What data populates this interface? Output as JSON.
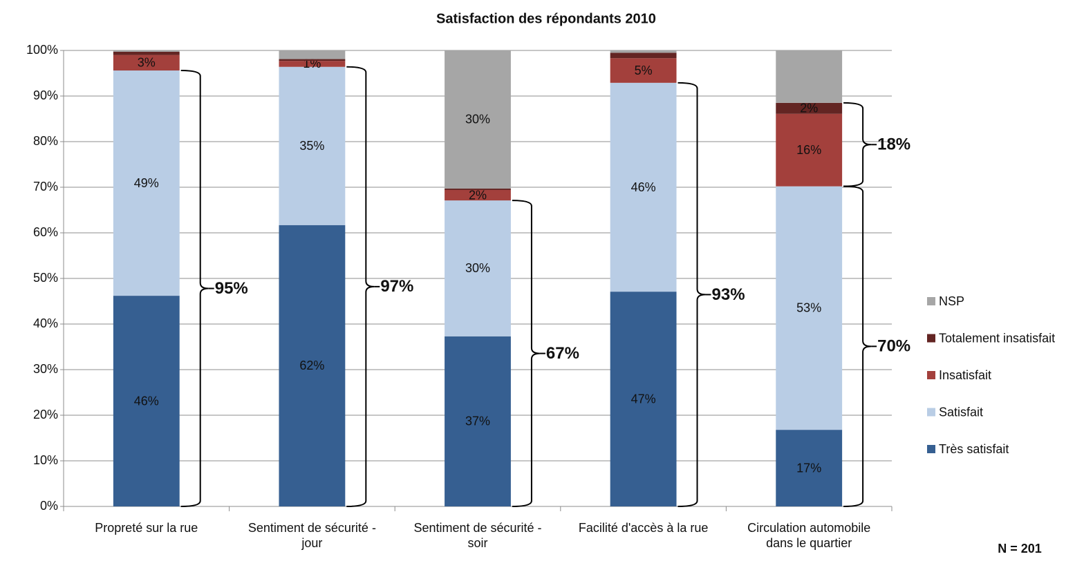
{
  "chart_data": {
    "type": "stacked_bar",
    "title": "Satisfaction des répondants 2010",
    "categories": [
      "Propreté sur la rue",
      "Sentiment de sécurité - jour",
      "Sentiment de sécurité - soir",
      "Facilité d'accès à la rue",
      "Circulation automobile dans le quartier"
    ],
    "series": [
      {
        "name": "Très satisfait",
        "color": "#365f91",
        "values": [
          46.2,
          61.7,
          37.3,
          47.1,
          16.8
        ],
        "value_labels": [
          "46%",
          "62%",
          "37%",
          "47%",
          "17%"
        ]
      },
      {
        "name": "Satisfait",
        "color": "#b9cde5",
        "values": [
          49.4,
          34.7,
          29.8,
          45.8,
          53.4
        ],
        "value_labels": [
          "49%",
          "35%",
          "30%",
          "46%",
          "53%"
        ]
      },
      {
        "name": "Insatisfait",
        "color": "#a3403c",
        "values": [
          3.4,
          1.3,
          2.3,
          5.4,
          15.9
        ],
        "value_labels": [
          "3%",
          "1%",
          "2%",
          "5%",
          "16%"
        ]
      },
      {
        "name": "Totalement insatisfait",
        "color": "#632523",
        "values": [
          0.7,
          0.4,
          0.3,
          1.2,
          2.4
        ],
        "value_labels": [
          null,
          null,
          null,
          null,
          "2%"
        ]
      },
      {
        "name": "NSP",
        "color": "#a6a6a6",
        "values": [
          0.3,
          1.9,
          30.3,
          0.5,
          11.5
        ],
        "value_labels": [
          null,
          null,
          "30%",
          null,
          null
        ]
      }
    ],
    "ylim": [
      0,
      100
    ],
    "yticks": [
      {
        "value": 0,
        "label": "0%"
      },
      {
        "value": 10,
        "label": "10%"
      },
      {
        "value": 20,
        "label": "20%"
      },
      {
        "value": 30,
        "label": "30%"
      },
      {
        "value": 40,
        "label": "40%"
      },
      {
        "value": 50,
        "label": "50%"
      },
      {
        "value": 60,
        "label": "60%"
      },
      {
        "value": 70,
        "label": "70%"
      },
      {
        "value": 80,
        "label": "80%"
      },
      {
        "value": 90,
        "label": "90%"
      },
      {
        "value": 100,
        "label": "100%"
      }
    ],
    "grid": true,
    "legend": "right",
    "annotations": [
      "95%",
      "97%",
      "67%",
      "93%",
      "18%",
      "70%"
    ],
    "note": "N = 201"
  }
}
